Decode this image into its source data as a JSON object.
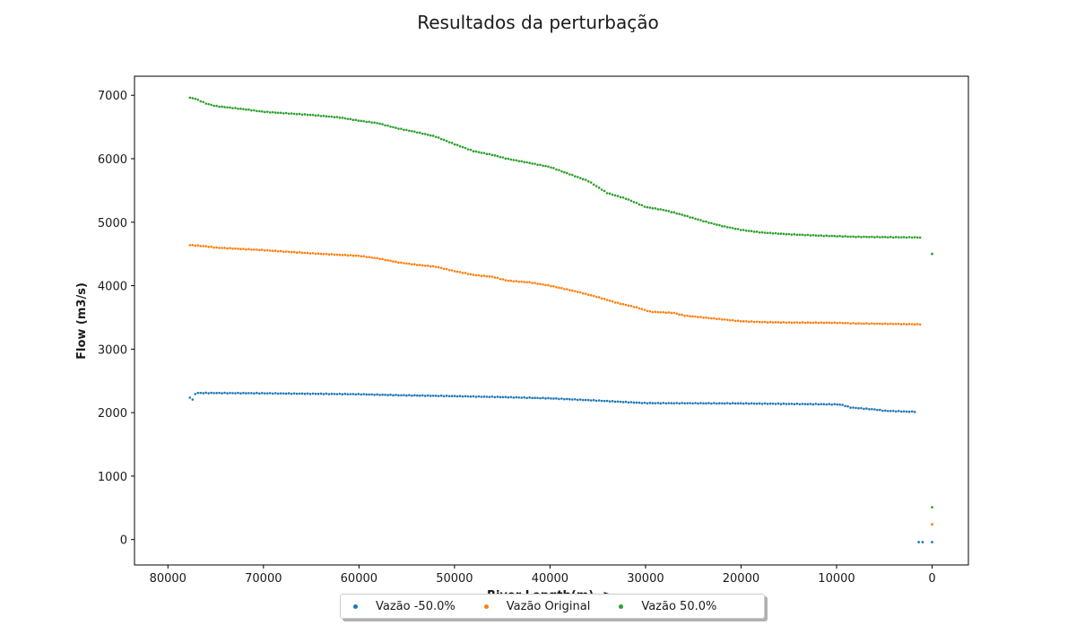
{
  "chart_data": {
    "type": "scatter",
    "title": "Resultados da perturbação",
    "xlabel": "River Length(m) ->",
    "ylabel": "Flow (m3/s)",
    "xlim": [
      83500,
      -3800
    ],
    "ylim": [
      -400,
      7300
    ],
    "x_ticks": [
      80000,
      70000,
      60000,
      50000,
      40000,
      30000,
      20000,
      10000,
      0
    ],
    "y_ticks": [
      0,
      1000,
      2000,
      3000,
      4000,
      5000,
      6000,
      7000
    ],
    "grid": false,
    "legend_position": "bottom-center",
    "series": [
      {
        "name": "Vazão -50.0%",
        "color": "#1f77b4",
        "curve": [
          [
            77700,
            2240
          ],
          [
            77400,
            2200
          ],
          [
            77100,
            2310
          ],
          [
            70000,
            2305
          ],
          [
            60000,
            2290
          ],
          [
            56000,
            2275
          ],
          [
            50000,
            2260
          ],
          [
            45000,
            2245
          ],
          [
            40000,
            2225
          ],
          [
            35000,
            2190
          ],
          [
            30000,
            2150
          ],
          [
            20000,
            2145
          ],
          [
            10000,
            2130
          ],
          [
            9500,
            2125
          ],
          [
            8500,
            2080
          ],
          [
            6000,
            2050
          ],
          [
            5000,
            2030
          ],
          [
            2500,
            2015
          ],
          [
            1700,
            2015
          ]
        ],
        "extra_points": [
          [
            1400,
            -40
          ],
          [
            1000,
            -40
          ],
          [
            0,
            -40
          ]
        ]
      },
      {
        "name": "Vazão Original",
        "color": "#ff7f0e",
        "curve": [
          [
            77700,
            4640
          ],
          [
            76000,
            4620
          ],
          [
            75000,
            4600
          ],
          [
            70000,
            4560
          ],
          [
            65000,
            4510
          ],
          [
            60000,
            4470
          ],
          [
            58000,
            4430
          ],
          [
            56000,
            4370
          ],
          [
            54000,
            4330
          ],
          [
            52000,
            4300
          ],
          [
            50000,
            4230
          ],
          [
            48000,
            4170
          ],
          [
            46000,
            4140
          ],
          [
            44500,
            4080
          ],
          [
            42000,
            4050
          ],
          [
            40000,
            4000
          ],
          [
            37000,
            3900
          ],
          [
            35000,
            3820
          ],
          [
            33000,
            3730
          ],
          [
            31000,
            3660
          ],
          [
            29500,
            3590
          ],
          [
            27000,
            3570
          ],
          [
            26000,
            3530
          ],
          [
            24000,
            3500
          ],
          [
            22000,
            3470
          ],
          [
            20000,
            3440
          ],
          [
            17500,
            3425
          ],
          [
            15000,
            3420
          ],
          [
            10000,
            3415
          ],
          [
            8000,
            3405
          ],
          [
            5000,
            3400
          ],
          [
            1000,
            3390
          ]
        ],
        "extra_points": [
          [
            0,
            240
          ]
        ]
      },
      {
        "name": "Vazão 50.0%",
        "color": "#2ca02c",
        "curve": [
          [
            77700,
            6960
          ],
          [
            77200,
            6950
          ],
          [
            76000,
            6870
          ],
          [
            75000,
            6830
          ],
          [
            72000,
            6780
          ],
          [
            70000,
            6740
          ],
          [
            68000,
            6720
          ],
          [
            65000,
            6690
          ],
          [
            62000,
            6650
          ],
          [
            60000,
            6600
          ],
          [
            58000,
            6560
          ],
          [
            56000,
            6480
          ],
          [
            54000,
            6420
          ],
          [
            52000,
            6350
          ],
          [
            50000,
            6230
          ],
          [
            48000,
            6120
          ],
          [
            46000,
            6060
          ],
          [
            44500,
            6000
          ],
          [
            42000,
            5930
          ],
          [
            40000,
            5870
          ],
          [
            38000,
            5760
          ],
          [
            36000,
            5650
          ],
          [
            34000,
            5460
          ],
          [
            32000,
            5370
          ],
          [
            30000,
            5240
          ],
          [
            28000,
            5190
          ],
          [
            26000,
            5110
          ],
          [
            24000,
            5020
          ],
          [
            22000,
            4940
          ],
          [
            20000,
            4880
          ],
          [
            18000,
            4840
          ],
          [
            15000,
            4810
          ],
          [
            12000,
            4790
          ],
          [
            10000,
            4780
          ],
          [
            8000,
            4770
          ],
          [
            5000,
            4765
          ],
          [
            1000,
            4760
          ]
        ],
        "extra_points": [
          [
            0,
            4500
          ],
          [
            0,
            510
          ]
        ]
      }
    ]
  }
}
